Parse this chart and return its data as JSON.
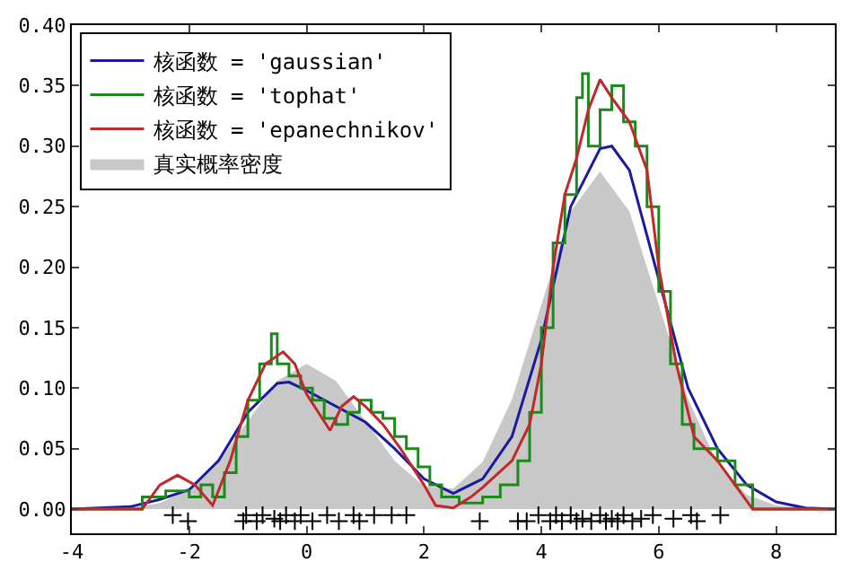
{
  "chart_data": {
    "type": "line",
    "xlim": [
      -4,
      9
    ],
    "xticks": [
      -4,
      -2,
      0,
      2,
      4,
      6,
      8
    ],
    "ylim": [
      -0.02,
      0.4
    ],
    "yticks": [
      {
        "value": 0,
        "label": "0.00"
      },
      {
        "value": 0.05,
        "label": "0.05"
      },
      {
        "value": 0.1,
        "label": "0.10"
      },
      {
        "value": 0.15,
        "label": "0.15"
      },
      {
        "value": 0.2,
        "label": "0.20"
      },
      {
        "value": 0.25,
        "label": "0.25"
      },
      {
        "value": 0.3,
        "label": "0.30"
      },
      {
        "value": 0.35,
        "label": "0.35"
      },
      {
        "value": 0.4,
        "label": "0.40"
      }
    ],
    "legend": "top left",
    "series": [
      {
        "name": "真实概率密度",
        "type": "area",
        "color": "#c8c8c8",
        "x": [
          -4,
          -3.5,
          -3,
          -2.5,
          -2,
          -1.5,
          -1,
          -0.5,
          0,
          0.5,
          1,
          1.5,
          2,
          2.5,
          3,
          3.5,
          4,
          4.5,
          5,
          5.5,
          6,
          6.5,
          7,
          7.5,
          8,
          8.5,
          9
        ],
        "values": [
          0,
          0,
          0.001,
          0.005,
          0.016,
          0.039,
          0.073,
          0.106,
          0.12,
          0.106,
          0.073,
          0.04,
          0.019,
          0.017,
          0.039,
          0.091,
          0.169,
          0.246,
          0.279,
          0.246,
          0.169,
          0.091,
          0.038,
          0.012,
          0.003,
          0.001,
          0
        ]
      },
      {
        "name": "核函数 = 'gaussian'",
        "color": "#1a1aa0",
        "x": [
          -4,
          -3,
          -2.5,
          -2,
          -1.5,
          -1,
          -0.5,
          -0.3,
          0,
          0.5,
          1,
          1.5,
          2,
          2.5,
          3,
          3.5,
          4,
          4.5,
          5,
          5.2,
          5.5,
          6,
          6.5,
          7,
          7.5,
          8,
          8.5,
          9
        ],
        "values": [
          0,
          0.002,
          0.008,
          0.016,
          0.04,
          0.08,
          0.104,
          0.105,
          0.098,
          0.085,
          0.072,
          0.05,
          0.025,
          0.013,
          0.025,
          0.06,
          0.14,
          0.25,
          0.298,
          0.3,
          0.28,
          0.19,
          0.1,
          0.05,
          0.02,
          0.006,
          0.001,
          0
        ]
      },
      {
        "name": "核函数 = 'tophat'",
        "type": "step",
        "color": "#1a8a1a",
        "x": [
          -4,
          -2.8,
          -2.4,
          -2,
          -1.8,
          -1.6,
          -1.4,
          -1.2,
          -1,
          -0.8,
          -0.6,
          -0.5,
          -0.3,
          -0.1,
          0.1,
          0.3,
          0.5,
          0.7,
          0.9,
          1.1,
          1.3,
          1.5,
          1.7,
          1.9,
          2.1,
          2.3,
          2.6,
          3,
          3.3,
          3.6,
          3.8,
          4,
          4.2,
          4.4,
          4.6,
          4.7,
          4.8,
          5,
          5.2,
          5.4,
          5.6,
          5.8,
          6,
          6.2,
          6.4,
          6.6,
          7,
          7.3,
          7.6,
          9
        ],
        "values": [
          0,
          0.01,
          0.015,
          0.01,
          0.02,
          0.01,
          0.03,
          0.06,
          0.09,
          0.12,
          0.145,
          0.12,
          0.11,
          0.1,
          0.09,
          0.075,
          0.07,
          0.08,
          0.09,
          0.08,
          0.075,
          0.06,
          0.05,
          0.035,
          0.02,
          0.01,
          0.005,
          0.01,
          0.02,
          0.04,
          0.08,
          0.15,
          0.22,
          0.26,
          0.34,
          0.36,
          0.3,
          0.33,
          0.35,
          0.32,
          0.3,
          0.25,
          0.18,
          0.12,
          0.07,
          0.05,
          0.04,
          0.02,
          0,
          0
        ]
      },
      {
        "name": "核函数 = 'epanechnikov'",
        "color": "#c0282a",
        "x": [
          -4,
          -2.8,
          -2.5,
          -2.2,
          -1.9,
          -1.6,
          -1.3,
          -1,
          -0.7,
          -0.4,
          -0.2,
          0,
          0.2,
          0.4,
          0.6,
          0.8,
          1,
          1.3,
          1.6,
          2,
          2.2,
          2.5,
          2.8,
          3,
          3.5,
          3.8,
          4,
          4.2,
          4.4,
          4.6,
          4.8,
          5,
          5.2,
          5.5,
          5.8,
          6,
          6.3,
          6.6,
          7,
          7.3,
          7.6,
          9
        ],
        "values": [
          0,
          0,
          0.02,
          0.028,
          0.02,
          0.003,
          0.04,
          0.09,
          0.12,
          0.13,
          0.12,
          0.095,
          0.08,
          0.065,
          0.085,
          0.093,
          0.085,
          0.07,
          0.05,
          0.02,
          0.003,
          0.001,
          0.01,
          0.018,
          0.04,
          0.07,
          0.12,
          0.2,
          0.26,
          0.29,
          0.33,
          0.355,
          0.34,
          0.32,
          0.28,
          0.2,
          0.12,
          0.06,
          0.04,
          0.02,
          0,
          0
        ]
      },
      {
        "type": "scatter",
        "marker": "cross",
        "color": "#000000",
        "x": [
          -2.28,
          -2.02,
          -1.08,
          -1.03,
          -0.85,
          -0.75,
          -0.55,
          -0.45,
          -0.35,
          -0.2,
          -0.1,
          0.1,
          0.35,
          0.55,
          0.8,
          0.9,
          1.15,
          1.45,
          1.7,
          2.95,
          3.6,
          3.75,
          3.95,
          4.15,
          4.25,
          4.35,
          4.5,
          4.6,
          4.7,
          4.85,
          5.0,
          5.1,
          5.2,
          5.3,
          5.4,
          5.55,
          5.7,
          5.9,
          6.25,
          6.55,
          6.65,
          7.05
        ],
        "values": [
          -0.005,
          -0.01,
          -0.01,
          -0.005,
          -0.01,
          -0.005,
          -0.008,
          -0.01,
          -0.005,
          -0.01,
          -0.005,
          -0.01,
          -0.005,
          -0.01,
          -0.005,
          -0.01,
          -0.005,
          -0.005,
          -0.005,
          -0.01,
          -0.01,
          -0.01,
          -0.005,
          -0.01,
          -0.005,
          -0.01,
          -0.005,
          -0.01,
          -0.008,
          -0.01,
          -0.005,
          -0.01,
          -0.008,
          -0.01,
          -0.005,
          -0.01,
          -0.008,
          -0.005,
          -0.008,
          -0.005,
          -0.01,
          -0.005
        ]
      }
    ]
  }
}
